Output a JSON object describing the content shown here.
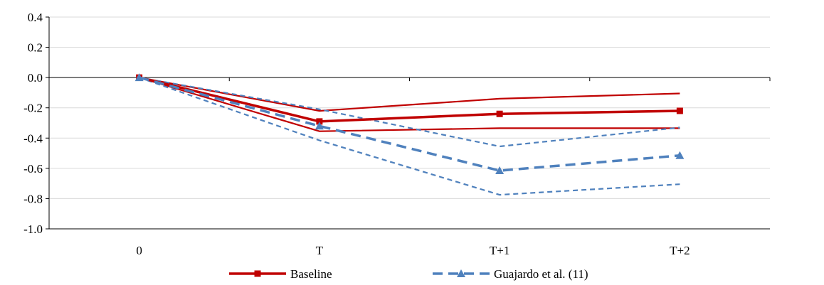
{
  "chart_data": {
    "type": "line",
    "categories": [
      "0",
      "T",
      "T+1",
      "T+2"
    ],
    "ylim": [
      -1.0,
      0.4
    ],
    "yticks": [
      "0.4",
      "0.2",
      "0.0",
      "-0.2",
      "-0.4",
      "-0.6",
      "-0.8",
      "-1.0"
    ],
    "grid": true,
    "legend_position": "bottom",
    "series": [
      {
        "name": "Baseline",
        "color": "#c00000",
        "style": "solid",
        "marker": "square",
        "values": [
          0.0,
          -0.29,
          -0.24,
          -0.22
        ],
        "ci_upper": [
          0.0,
          -0.22,
          -0.14,
          -0.105
        ],
        "ci_lower": [
          0.0,
          -0.355,
          -0.335,
          -0.335
        ]
      },
      {
        "name": "Guajardo et al. (11)",
        "color": "#4f81bd",
        "style": "dashed",
        "marker": "triangle",
        "values": [
          0.0,
          -0.32,
          -0.615,
          -0.515
        ],
        "ci_upper": [
          0.0,
          -0.21,
          -0.455,
          -0.33
        ],
        "ci_lower": [
          0.0,
          -0.415,
          -0.775,
          -0.705
        ]
      }
    ]
  }
}
